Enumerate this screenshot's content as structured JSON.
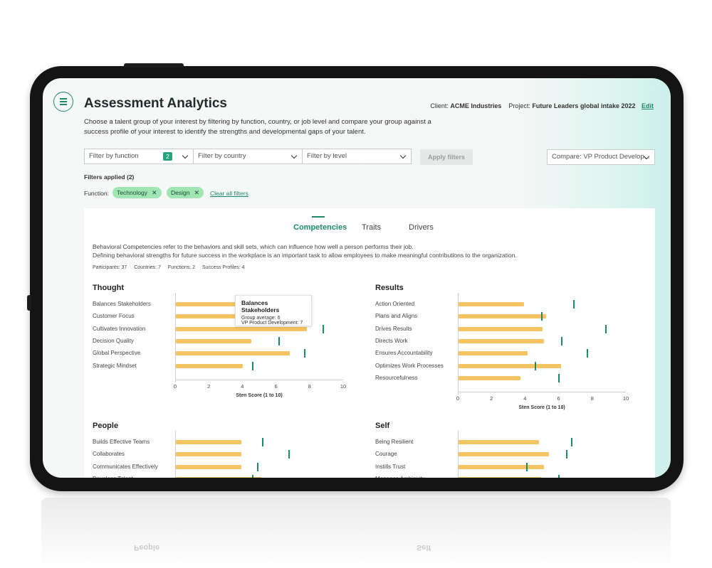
{
  "header": {
    "title": "Assessment Analytics",
    "client_label": "Client:",
    "client": "ACME Industries",
    "project_label": "Project:",
    "project": "Future Leaders global intake 2022",
    "edit": "Edit",
    "intro": "Choose a talent group of your interest by filtering by function, country, or job level and compare your group against a success profile of your interest to identify the strengths and developmental gaps of your talent."
  },
  "filters": {
    "function": "Filter by function",
    "function_count": "2",
    "country": "Filter by country",
    "level": "Filter by level",
    "apply": "Apply filters",
    "compare": "Compare: VP Product Develop...",
    "applied": "Filters applied (2)",
    "function_label": "Function:",
    "chips": [
      "Technology",
      "Design"
    ],
    "clear_all": "Clear all filters"
  },
  "tabs": [
    "Competencies",
    "Traits",
    "Drivers"
  ],
  "description": {
    "line1": "Behavioral Competencies refer to the behaviors and skill sets, which can influence how well a person performs their job.",
    "line2": "Defining behavioral strengths for future success in the workplace is an important task to allow employees to make meaningful contributions to the organization."
  },
  "stats": {
    "participants": "Participants: 37",
    "countries": "Countries: 7",
    "functions": "Functions: 2",
    "profiles": "Success Profiles: 4"
  },
  "tooltip": {
    "title": "Balances Stakeholders",
    "line1": "Group average: 6",
    "line2": "VP Product Development: 7"
  },
  "colors": {
    "accent": "#1e8a6a",
    "bar": "#f4c462",
    "chip": "#9fe6b3"
  },
  "chart_data": [
    {
      "type": "bar",
      "title": "Thought",
      "categories": [
        "Balances Stakeholders",
        "Customer Focus",
        "Cultivates Innovation",
        "Decision Quality",
        "Global Perspective",
        "Strategic Mindset"
      ],
      "series": [
        {
          "values": [
            6,
            5.3,
            7.8,
            4.5,
            6.8,
            4
          ]
        },
        {
          "values": [
            7,
            6.4,
            8.8,
            6.2,
            7.7,
            4.6
          ]
        }
      ],
      "xticks": [
        0,
        2,
        4,
        6,
        8,
        10
      ],
      "xlabel": "Sten Score (1 to 10)",
      "xlim": [
        0,
        10
      ]
    },
    {
      "type": "bar",
      "title": "Results",
      "categories": [
        "Action Oriented",
        "Plans and Aligns",
        "Drives Results",
        "Directs Work",
        "Ensures Accountability",
        "Optimizes Work Processes",
        "Resourcefulness"
      ],
      "series": [
        {
          "values": [
            3.9,
            5.2,
            5,
            5.1,
            4.1,
            6.1,
            3.7
          ]
        },
        {
          "values": [
            6.9,
            5,
            8.8,
            6.2,
            7.7,
            4.6,
            6
          ]
        }
      ],
      "xticks": [
        0,
        2,
        4,
        6,
        8,
        10
      ],
      "xlabel": "Sten Score (1 to 10)",
      "xlim": [
        0,
        10
      ]
    },
    {
      "type": "bar",
      "title": "People",
      "categories": [
        "Builds Effective Teams",
        "Collaborates",
        "Communicates Effectively",
        "Develops Talent"
      ],
      "series": [
        {
          "values": [
            3.9,
            3.9,
            3.9,
            5.1
          ]
        },
        {
          "values": [
            5.2,
            6.8,
            4.9,
            4.6
          ]
        }
      ],
      "xlim": [
        0,
        10
      ]
    },
    {
      "type": "bar",
      "title": "Self",
      "categories": [
        "Being Resilient",
        "Courage",
        "Instills Trust",
        "Manages Ambiguity"
      ],
      "series": [
        {
          "values": [
            4.8,
            5.4,
            5.1,
            4.9
          ]
        },
        {
          "values": [
            6.8,
            6.5,
            4.1,
            6
          ]
        }
      ],
      "xlim": [
        0,
        10
      ]
    }
  ]
}
